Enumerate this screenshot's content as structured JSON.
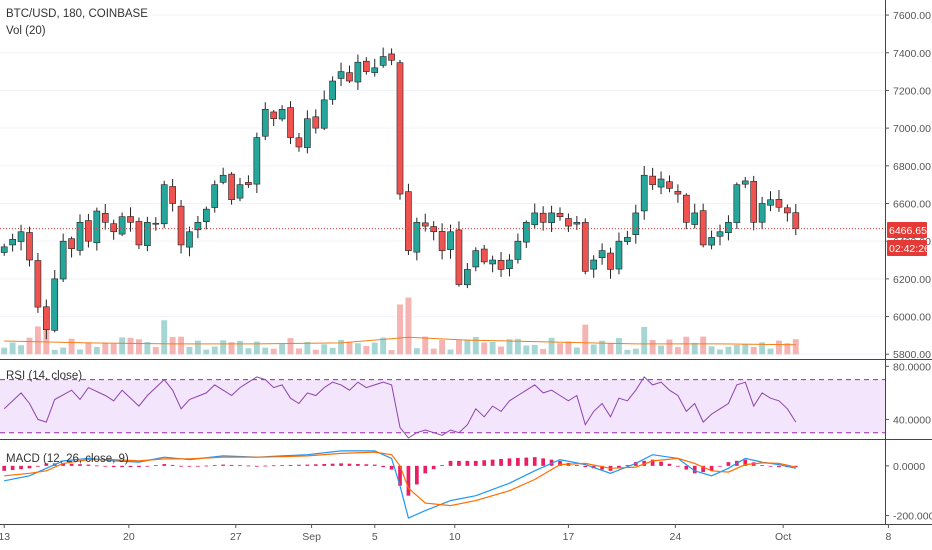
{
  "chart_data": [
    {
      "type": "candlestick",
      "pane": "price",
      "title": "BTC/USD, 180, COINBASE",
      "overlay_label": "Vol (20)",
      "ylim": [
        5780,
        7680
      ],
      "y_ticks": [
        "7600.00",
        "7400.00",
        "7200.00",
        "7000.00",
        "6800.00",
        "6600.00",
        "6400.00",
        "6200.00",
        "6000.00",
        "5800.00"
      ],
      "y_tick_values": [
        7600,
        7400,
        7200,
        7000,
        6800,
        6600,
        6400,
        6200,
        6000,
        5800
      ],
      "last_price": 6466.65,
      "last_price_label": "6466.65",
      "countdown_label": "02:42:26",
      "close_path": [
        [
          0,
          6370
        ],
        [
          2,
          6450
        ],
        [
          3,
          6300
        ],
        [
          4,
          6050
        ],
        [
          5,
          5930
        ],
        [
          6,
          6200
        ],
        [
          7,
          6400
        ],
        [
          8,
          6360
        ],
        [
          9,
          6500
        ],
        [
          10,
          6400
        ],
        [
          11,
          6560
        ],
        [
          12,
          6500
        ],
        [
          13,
          6450
        ],
        [
          14,
          6530
        ],
        [
          15,
          6500
        ],
        [
          16,
          6380
        ],
        [
          17,
          6500
        ],
        [
          18,
          6490
        ],
        [
          19,
          6700
        ],
        [
          20,
          6600
        ],
        [
          21,
          6380
        ],
        [
          22,
          6450
        ],
        [
          23,
          6500
        ],
        [
          24,
          6570
        ],
        [
          25,
          6700
        ],
        [
          26,
          6750
        ],
        [
          27,
          6620
        ],
        [
          28,
          6700
        ],
        [
          29,
          6700
        ],
        [
          30,
          6950
        ],
        [
          31,
          7100
        ],
        [
          32,
          7050
        ],
        [
          33,
          7100
        ],
        [
          34,
          6950
        ],
        [
          35,
          6900
        ],
        [
          36,
          7050
        ],
        [
          37,
          7000
        ],
        [
          38,
          7150
        ],
        [
          39,
          7250
        ],
        [
          40,
          7300
        ],
        [
          41,
          7250
        ],
        [
          42,
          7350
        ],
        [
          43,
          7300
        ],
        [
          44,
          7320
        ],
        [
          45,
          7380
        ],
        [
          46,
          7360
        ],
        [
          47,
          6650
        ],
        [
          48,
          6350
        ],
        [
          49,
          6500
        ],
        [
          50,
          6480
        ],
        [
          51,
          6450
        ],
        [
          52,
          6350
        ],
        [
          53,
          6450
        ],
        [
          54,
          6170
        ],
        [
          55,
          6250
        ],
        [
          56,
          6350
        ],
        [
          57,
          6290
        ],
        [
          58,
          6300
        ],
        [
          59,
          6250
        ],
        [
          60,
          6300
        ],
        [
          61,
          6400
        ],
        [
          62,
          6500
        ],
        [
          63,
          6550
        ],
        [
          64,
          6500
        ],
        [
          65,
          6550
        ],
        [
          66,
          6530
        ],
        [
          67,
          6480
        ],
        [
          68,
          6500
        ],
        [
          69,
          6240
        ],
        [
          70,
          6300
        ],
        [
          71,
          6350
        ],
        [
          72,
          6250
        ],
        [
          73,
          6400
        ],
        [
          74,
          6420
        ],
        [
          75,
          6550
        ],
        [
          76,
          6750
        ],
        [
          77,
          6700
        ],
        [
          78,
          6730
        ],
        [
          79,
          6680
        ],
        [
          80,
          6650
        ],
        [
          81,
          6500
        ],
        [
          82,
          6550
        ],
        [
          83,
          6380
        ],
        [
          84,
          6420
        ],
        [
          85,
          6450
        ],
        [
          86,
          6500
        ],
        [
          87,
          6700
        ],
        [
          88,
          6720
        ],
        [
          89,
          6500
        ],
        [
          90,
          6600
        ],
        [
          91,
          6620
        ],
        [
          92,
          6580
        ],
        [
          93,
          6550
        ],
        [
          94,
          6466.65
        ]
      ],
      "volume_level_path": [
        [
          0,
          5870
        ],
        [
          10,
          5860
        ],
        [
          20,
          5855
        ],
        [
          30,
          5855
        ],
        [
          40,
          5860
        ],
        [
          48,
          5890
        ],
        [
          55,
          5875
        ],
        [
          65,
          5865
        ],
        [
          75,
          5855
        ],
        [
          85,
          5855
        ],
        [
          94,
          5850
        ]
      ]
    },
    {
      "type": "line",
      "pane": "rsi",
      "label": "RSI (14, close)",
      "ylim": [
        26,
        84
      ],
      "y_ticks": [
        "80.0000",
        "40.0000"
      ],
      "y_tick_values": [
        80,
        40
      ],
      "band": [
        30,
        70
      ],
      "values_path": [
        [
          0,
          48
        ],
        [
          2,
          60
        ],
        [
          3,
          52
        ],
        [
          4,
          40
        ],
        [
          5,
          38
        ],
        [
          6,
          55
        ],
        [
          8,
          62
        ],
        [
          9,
          55
        ],
        [
          10,
          64
        ],
        [
          12,
          58
        ],
        [
          13,
          54
        ],
        [
          14,
          62
        ],
        [
          16,
          50
        ],
        [
          17,
          58
        ],
        [
          19,
          70
        ],
        [
          20,
          62
        ],
        [
          21,
          48
        ],
        [
          22,
          55
        ],
        [
          24,
          60
        ],
        [
          25,
          66
        ],
        [
          26,
          62
        ],
        [
          27,
          58
        ],
        [
          28,
          64
        ],
        [
          29,
          68
        ],
        [
          30,
          72
        ],
        [
          31,
          70
        ],
        [
          32,
          64
        ],
        [
          33,
          66
        ],
        [
          34,
          56
        ],
        [
          35,
          52
        ],
        [
          36,
          60
        ],
        [
          37,
          58
        ],
        [
          38,
          64
        ],
        [
          39,
          68
        ],
        [
          40,
          66
        ],
        [
          41,
          62
        ],
        [
          42,
          68
        ],
        [
          43,
          64
        ],
        [
          44,
          66
        ],
        [
          45,
          68
        ],
        [
          46,
          66
        ],
        [
          47,
          34
        ],
        [
          48,
          26
        ],
        [
          49,
          30
        ],
        [
          50,
          32
        ],
        [
          51,
          30
        ],
        [
          52,
          28
        ],
        [
          53,
          32
        ],
        [
          54,
          30
        ],
        [
          55,
          36
        ],
        [
          56,
          48
        ],
        [
          57,
          42
        ],
        [
          58,
          50
        ],
        [
          59,
          46
        ],
        [
          60,
          54
        ],
        [
          61,
          58
        ],
        [
          62,
          62
        ],
        [
          63,
          66
        ],
        [
          64,
          60
        ],
        [
          65,
          62
        ],
        [
          66,
          58
        ],
        [
          67,
          54
        ],
        [
          68,
          58
        ],
        [
          69,
          36
        ],
        [
          70,
          46
        ],
        [
          71,
          52
        ],
        [
          72,
          42
        ],
        [
          73,
          56
        ],
        [
          74,
          54
        ],
        [
          75,
          62
        ],
        [
          76,
          72
        ],
        [
          77,
          66
        ],
        [
          78,
          68
        ],
        [
          79,
          62
        ],
        [
          80,
          58
        ],
        [
          81,
          46
        ],
        [
          82,
          52
        ],
        [
          83,
          38
        ],
        [
          84,
          44
        ],
        [
          85,
          48
        ],
        [
          86,
          52
        ],
        [
          87,
          66
        ],
        [
          88,
          68
        ],
        [
          89,
          50
        ],
        [
          90,
          60
        ],
        [
          91,
          56
        ],
        [
          92,
          54
        ],
        [
          93,
          48
        ],
        [
          94,
          38
        ]
      ]
    },
    {
      "type": "line",
      "pane": "macd",
      "label": "MACD (12, 26, close, 9)",
      "ylim": [
        -230,
        100
      ],
      "y_ticks": [
        "0.0000",
        "-200.0000"
      ],
      "y_tick_values": [
        0,
        -200
      ],
      "macd_path": [
        [
          0,
          -60
        ],
        [
          3,
          -40
        ],
        [
          5,
          -10
        ],
        [
          7,
          20
        ],
        [
          10,
          30
        ],
        [
          13,
          20
        ],
        [
          16,
          15
        ],
        [
          19,
          35
        ],
        [
          22,
          25
        ],
        [
          26,
          40
        ],
        [
          30,
          35
        ],
        [
          33,
          40
        ],
        [
          36,
          45
        ],
        [
          40,
          60
        ],
        [
          44,
          60
        ],
        [
          46,
          30
        ],
        [
          47,
          -80
        ],
        [
          48,
          -210
        ],
        [
          50,
          -180
        ],
        [
          53,
          -140
        ],
        [
          56,
          -120
        ],
        [
          60,
          -70
        ],
        [
          63,
          -20
        ],
        [
          66,
          25
        ],
        [
          69,
          5
        ],
        [
          72,
          -30
        ],
        [
          75,
          10
        ],
        [
          77,
          45
        ],
        [
          80,
          30
        ],
        [
          82,
          -20
        ],
        [
          84,
          -40
        ],
        [
          86,
          -10
        ],
        [
          88,
          30
        ],
        [
          90,
          15
        ],
        [
          92,
          5
        ],
        [
          94,
          -10
        ]
      ],
      "signal_path": [
        [
          0,
          -40
        ],
        [
          3,
          -30
        ],
        [
          5,
          -20
        ],
        [
          7,
          10
        ],
        [
          10,
          25
        ],
        [
          13,
          25
        ],
        [
          16,
          20
        ],
        [
          19,
          28
        ],
        [
          22,
          28
        ],
        [
          26,
          35
        ],
        [
          30,
          35
        ],
        [
          33,
          37
        ],
        [
          36,
          40
        ],
        [
          40,
          50
        ],
        [
          44,
          55
        ],
        [
          46,
          45
        ],
        [
          47,
          0
        ],
        [
          48,
          -90
        ],
        [
          50,
          -150
        ],
        [
          53,
          -160
        ],
        [
          56,
          -140
        ],
        [
          60,
          -100
        ],
        [
          63,
          -55
        ],
        [
          66,
          5
        ],
        [
          69,
          10
        ],
        [
          72,
          -10
        ],
        [
          75,
          -5
        ],
        [
          77,
          20
        ],
        [
          80,
          30
        ],
        [
          82,
          10
        ],
        [
          84,
          -20
        ],
        [
          86,
          -25
        ],
        [
          88,
          5
        ],
        [
          90,
          12
        ],
        [
          92,
          10
        ],
        [
          94,
          -5
        ]
      ]
    }
  ],
  "time_axis": {
    "n_bars": 95,
    "labels": [
      {
        "text": "13",
        "bar": 0
      },
      {
        "text": "20",
        "bar": 14.8
      },
      {
        "text": "27",
        "bar": 27.5
      },
      {
        "text": "Sep",
        "bar": 36.5
      },
      {
        "text": "5",
        "bar": 44
      },
      {
        "text": "10",
        "bar": 53.5
      },
      {
        "text": "17",
        "bar": 67
      },
      {
        "text": "24",
        "bar": 79.7
      },
      {
        "text": "Oct",
        "bar": 92.5
      },
      {
        "text": "8",
        "bar": 105
      }
    ]
  },
  "colors": {
    "up": "#26a69a",
    "down": "#ef5350",
    "wick": "#000000",
    "volume_up": "#a5d6d3",
    "volume_down": "#f5b3b1",
    "volume_ma": "#f57f17",
    "price_line": "#e53935",
    "rsi_line": "#8e44ad",
    "rsi_band_fill": "#f3e5fb",
    "rsi_band_border": "#9c27b0",
    "macd_line": "#2196f3",
    "signal_line": "#ff6d00",
    "histogram": "#e91e63"
  }
}
